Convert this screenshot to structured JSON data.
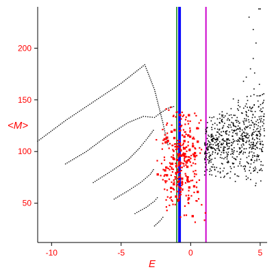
{
  "chart_data": {
    "type": "scatter",
    "title": "",
    "xlabel": "E",
    "ylabel": "<M>",
    "xlim": [
      -11,
      5.5
    ],
    "ylim": [
      12,
      240
    ],
    "x_ticks": [
      -10,
      -5,
      0,
      5
    ],
    "y_ticks": [
      50,
      100,
      150,
      200
    ],
    "grid": false,
    "legend": "none",
    "colors": {
      "axes": "#000000",
      "tick_labels": "#ff0000",
      "axis_titles": "#ff0000",
      "curves": "#000000",
      "red_points": "#ff0000",
      "cloud": "#000000"
    },
    "curves": [
      {
        "x": [
          -11.0,
          -9.0,
          -7.0,
          -5.0,
          -3.3,
          -2.6,
          -2.0,
          -1.7,
          -1.6
        ],
        "y": [
          110,
          130,
          148,
          166,
          184,
          160,
          128,
          110,
          105
        ]
      },
      {
        "x": [
          -9.0,
          -7.5,
          -6.0,
          -4.5,
          -3.4,
          -2.6,
          -2.1,
          -1.6,
          -1.1
        ],
        "y": [
          88,
          100,
          115,
          128,
          134,
          133,
          138,
          142,
          144
        ]
      },
      {
        "x": [
          -7.0,
          -5.6,
          -4.5,
          -3.7,
          -3.1,
          -2.6
        ],
        "y": [
          70,
          82,
          92,
          103,
          113,
          122
        ]
      },
      {
        "x": [
          -5.5,
          -4.5,
          -3.6,
          -2.9,
          -2.6
        ],
        "y": [
          54,
          62,
          70,
          78,
          84
        ]
      },
      {
        "x": [
          -4.0,
          -3.2,
          -2.6,
          -2.3
        ],
        "y": [
          40,
          46,
          52,
          57
        ]
      },
      {
        "x": [
          -2.6,
          -2.2,
          -1.9
        ],
        "y": [
          28,
          33,
          38
        ]
      }
    ],
    "red_cluster": {
      "x_range": [
        -1.8,
        0.6
      ],
      "y_range": [
        15,
        145
      ],
      "center": [
        -0.7,
        88
      ]
    },
    "cloud": {
      "x_range": [
        1.0,
        5.3
      ],
      "y_range": [
        55,
        165
      ]
    },
    "upper_scatter": {
      "x": [
        4.3,
        4.5,
        4.7,
        4.5,
        4.2,
        4.9,
        5.0,
        4.0,
        3.8,
        4.6
      ],
      "y": [
        180,
        190,
        205,
        218,
        230,
        238,
        238,
        172,
        168,
        176
      ]
    },
    "vertical_lines": [
      {
        "x": -1.0,
        "color": "#008000",
        "width": 1.5
      },
      {
        "x": -0.8,
        "color": "#0000ff",
        "width": 4
      },
      {
        "x": 1.1,
        "color": "#cc00cc",
        "width": 2
      }
    ]
  }
}
